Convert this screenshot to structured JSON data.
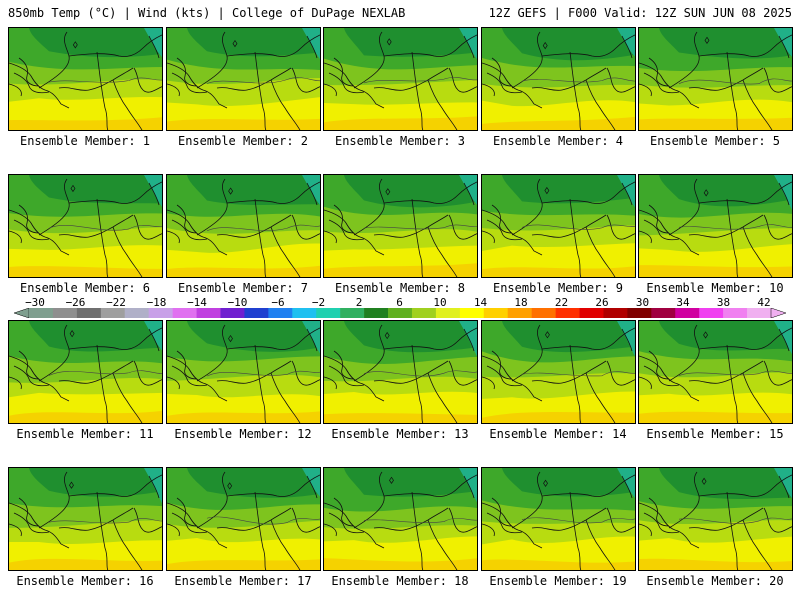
{
  "header": {
    "left": "850mb Temp (°C) | Wind (kts) | College of DuPage NEXLAB",
    "right": "12Z GEFS | F000 Valid: 12Z SUN JUN 08 2025"
  },
  "panels": [
    {
      "label": "Ensemble Member: 1"
    },
    {
      "label": "Ensemble Member: 2"
    },
    {
      "label": "Ensemble Member: 3"
    },
    {
      "label": "Ensemble Member: 4"
    },
    {
      "label": "Ensemble Member: 5"
    },
    {
      "label": "Ensemble Member: 6"
    },
    {
      "label": "Ensemble Member: 7"
    },
    {
      "label": "Ensemble Member: 8"
    },
    {
      "label": "Ensemble Member: 9"
    },
    {
      "label": "Ensemble Member: 10"
    },
    {
      "label": "Ensemble Member: 11"
    },
    {
      "label": "Ensemble Member: 12"
    },
    {
      "label": "Ensemble Member: 13"
    },
    {
      "label": "Ensemble Member: 14"
    },
    {
      "label": "Ensemble Member: 15"
    },
    {
      "label": "Ensemble Member: 16"
    },
    {
      "label": "Ensemble Member: 17"
    },
    {
      "label": "Ensemble Member: 18"
    },
    {
      "label": "Ensemble Member: 19"
    },
    {
      "label": "Ensemble Member: 20"
    }
  ],
  "colorbar": {
    "labels": [
      "−30",
      "−26",
      "−22",
      "−18",
      "−14",
      "−10",
      "−6",
      "−2",
      "2",
      "6",
      "10",
      "14",
      "18",
      "22",
      "26",
      "30",
      "34",
      "38",
      "42"
    ],
    "colors": [
      "#7f9f8f",
      "#8f8f8f",
      "#6f6f6f",
      "#9f9f9f",
      "#b0b0c8",
      "#c8a0e8",
      "#e070f0",
      "#c040e0",
      "#7020d0",
      "#2040d0",
      "#2080f0",
      "#20c0f0",
      "#20d0b0",
      "#30b060",
      "#208020",
      "#60b020",
      "#a0d020",
      "#e0f020",
      "#ffff00",
      "#ffd000",
      "#ffa000",
      "#ff7000",
      "#ff3000",
      "#e00000",
      "#b00000",
      "#800000",
      "#a00040",
      "#d000a0",
      "#f040f0",
      "#f080f0",
      "#f0b0f0"
    ]
  },
  "map_colors": {
    "dark_green": "#1f8f2f",
    "mid_green": "#3ea82a",
    "light_green": "#7ec41e",
    "yellow_green": "#b8dc10",
    "yellow": "#f0f000",
    "orange_yellow": "#f5d200",
    "teal": "#20b088"
  }
}
